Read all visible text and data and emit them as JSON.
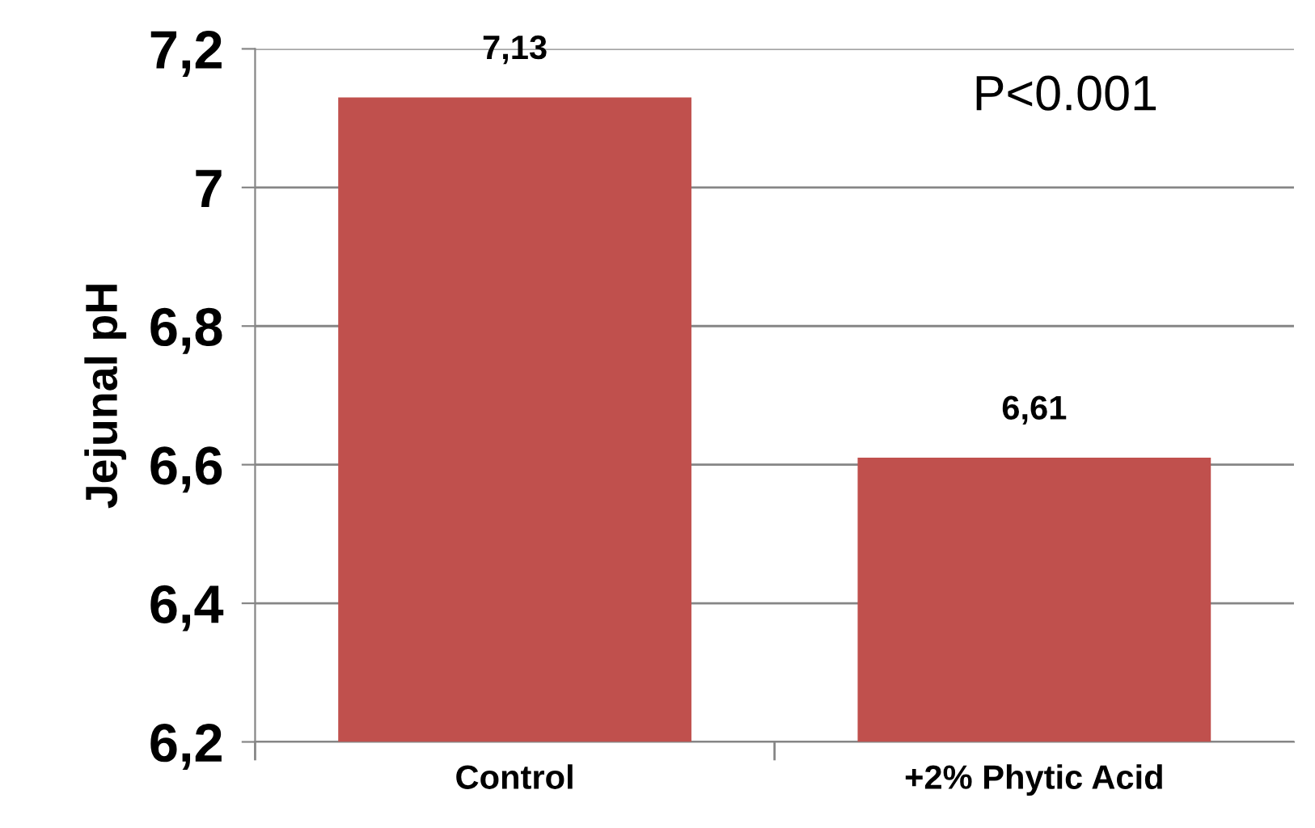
{
  "chart_data": {
    "type": "bar",
    "ylabel": "Jejunal pH",
    "categories": [
      "Control",
      "+2% Phytic Acid"
    ],
    "values": [
      7.13,
      6.61
    ],
    "value_labels": [
      "7,13",
      "6,61"
    ],
    "color": "#c0504d",
    "ylim": [
      6.2,
      7.2
    ],
    "yticks": [
      {
        "value": 6.2,
        "label": "6,2"
      },
      {
        "value": 6.4,
        "label": "6,4"
      },
      {
        "value": 6.6,
        "label": "6,6"
      },
      {
        "value": 6.8,
        "label": "6,8"
      },
      {
        "value": 7.0,
        "label": "7"
      },
      {
        "value": 7.2,
        "label": "7,2"
      }
    ],
    "grid": "y",
    "annotations": [
      "P<0.001"
    ]
  }
}
